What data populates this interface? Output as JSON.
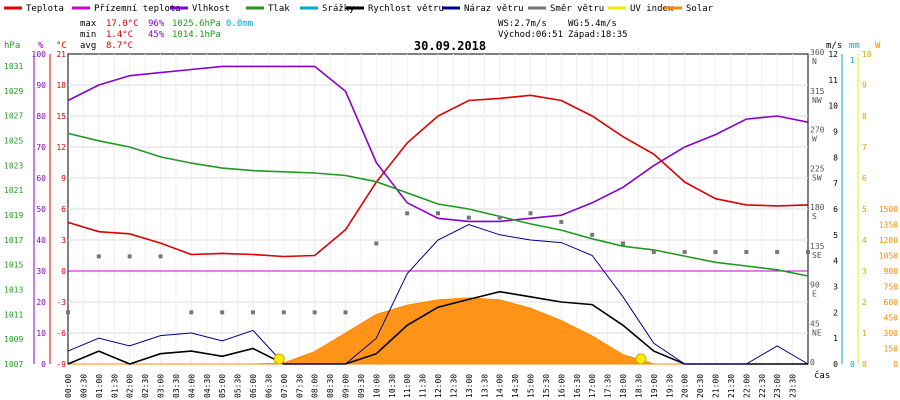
{
  "chart_data": {
    "type": "line",
    "title": "30.09.2018",
    "legend": [
      {
        "name": "Teplota",
        "color": "#dd0000"
      },
      {
        "name": "Přízemní teplota",
        "color": "#cc00cc"
      },
      {
        "name": "Vlhkost",
        "color": "#8800cc"
      },
      {
        "name": "Tlak",
        "color": "#229922"
      },
      {
        "name": "Srážky",
        "color": "#00aacc"
      },
      {
        "name": "Rychlost větru",
        "color": "#000000"
      },
      {
        "name": "Náraz větru",
        "color": "#000088"
      },
      {
        "name": "Směr větru",
        "color": "#777777"
      },
      {
        "name": "UV index",
        "color": "#eeee00"
      },
      {
        "name": "Solar",
        "color": "#ff8800"
      }
    ],
    "stats": {
      "max_label": "max",
      "max_temp": "17.0°C",
      "max_hum": "96%",
      "max_press": "1025.6hPa",
      "max_rain": "0.0mm",
      "min_label": "min",
      "min_temp": "1.4°C",
      "min_hum": "45%",
      "min_press": "1014.1hPa",
      "avg_label": "avg",
      "avg_temp": "8.7°C"
    },
    "info": {
      "ws": "WS:2.7m/s",
      "wg": "WG:5.4m/s",
      "sunrise": "Východ:06:51",
      "sunset": "Západ:18:35"
    },
    "axis_units": {
      "press": "hPa",
      "hum": "%",
      "temp": "°C",
      "wind": "m/s",
      "rain": "mm",
      "solar": "W",
      "x": "čas"
    },
    "axes": {
      "hpa_ticks": [
        "1031",
        "1029",
        "1027",
        "1025",
        "1023",
        "1021",
        "1019",
        "1017",
        "1015",
        "1013",
        "1011",
        "1009",
        "1007"
      ],
      "hum_ticks": [
        "100",
        "90",
        "80",
        "70",
        "60",
        "50",
        "40",
        "30",
        "20",
        "10",
        "0"
      ],
      "temp_ticks": [
        "21",
        "18",
        "15",
        "12",
        "9",
        "6",
        "3",
        "0",
        "-3",
        "-6",
        "-9"
      ],
      "temp_range": [
        -9,
        21
      ],
      "dir_ticks": [
        {
          "deg": "360",
          "dir": "N"
        },
        {
          "deg": "315",
          "dir": "NW"
        },
        {
          "deg": "270",
          "dir": "W"
        },
        {
          "deg": "225",
          "dir": "SW"
        },
        {
          "deg": "180",
          "dir": "S"
        },
        {
          "deg": "135",
          "dir": "SE"
        },
        {
          "deg": "90",
          "dir": "E"
        },
        {
          "deg": "45",
          "dir": "NE"
        },
        {
          "deg": "0",
          "dir": ""
        }
      ],
      "wind_ticks": [
        "12",
        "11",
        "10",
        "9",
        "8",
        "7",
        "6",
        "5",
        "4",
        "3",
        "2",
        "1",
        "0"
      ],
      "wind_range": [
        0,
        12
      ],
      "rain_ticks": [
        "1",
        "0"
      ],
      "solar_ticks": [
        "1500",
        "1350",
        "1200",
        "1050",
        "900",
        "750",
        "600",
        "450",
        "300",
        "150",
        "0"
      ],
      "solar_range": [
        0,
        1500
      ],
      "uv_ticks": [
        "10",
        "9",
        "8",
        "7",
        "6",
        "5",
        "4",
        "3",
        "2",
        "1",
        "0"
      ],
      "x_ticks": [
        "00:00",
        "00:30",
        "01:00",
        "01:30",
        "02:00",
        "02:30",
        "03:00",
        "03:30",
        "04:00",
        "04:30",
        "05:00",
        "05:30",
        "06:00",
        "06:30",
        "07:00",
        "07:30",
        "08:00",
        "08:30",
        "09:00",
        "09:30",
        "10:00",
        "10:30",
        "11:00",
        "11:30",
        "12:00",
        "12:30",
        "13:00",
        "13:30",
        "14:00",
        "14:30",
        "15:00",
        "15:30",
        "16:00",
        "16:30",
        "17:00",
        "17:30",
        "18:00",
        "18:30",
        "19:00",
        "19:30",
        "20:00",
        "20:30",
        "21:00",
        "21:30",
        "22:00",
        "22:30",
        "23:00",
        "23:30"
      ]
    },
    "x_hours": [
      0,
      1,
      2,
      3,
      4,
      5,
      6,
      7,
      8,
      9,
      10,
      11,
      12,
      13,
      14,
      15,
      16,
      17,
      18,
      19,
      20,
      21,
      22,
      23,
      24
    ],
    "series": [
      {
        "name": "Teplota",
        "axis": "temp",
        "values": [
          4.7,
          3.8,
          3.6,
          2.7,
          1.6,
          1.7,
          1.6,
          1.4,
          1.5,
          4.0,
          8.6,
          12.4,
          15.0,
          16.5,
          16.7,
          17.0,
          16.5,
          15.0,
          13.0,
          11.3,
          8.6,
          7.0,
          6.4,
          6.3,
          6.4
        ]
      },
      {
        "name": "Vlhkost",
        "axis": "hum",
        "values": [
          85,
          90,
          93,
          94,
          95,
          96,
          96,
          96,
          96,
          88,
          65,
          52,
          47,
          46,
          46,
          47,
          48,
          52,
          57,
          64,
          70,
          74,
          79,
          80,
          78
        ]
      },
      {
        "name": "Tlak",
        "axis": "press",
        "values": [
          1025.6,
          1025.0,
          1024.5,
          1023.7,
          1023.2,
          1022.8,
          1022.6,
          1022.5,
          1022.4,
          1022.2,
          1021.7,
          1020.8,
          1019.9,
          1019.5,
          1018.9,
          1018.3,
          1017.8,
          1017.1,
          1016.5,
          1016.2,
          1015.7,
          1015.2,
          1014.9,
          1014.6,
          1014.1
        ]
      },
      {
        "name": "Solar",
        "axis": "solar",
        "values": [
          0,
          0,
          0,
          0,
          0,
          0,
          0,
          10,
          120,
          300,
          480,
          570,
          620,
          640,
          620,
          540,
          420,
          270,
          90,
          0,
          0,
          0,
          0,
          0,
          0
        ]
      },
      {
        "name": "Rychlost větru",
        "axis": "wind",
        "values": [
          0,
          0.5,
          0,
          0.4,
          0.5,
          0.3,
          0.6,
          0,
          0,
          0,
          0.4,
          1.5,
          2.2,
          2.5,
          2.8,
          2.6,
          2.4,
          2.3,
          1.5,
          0.5,
          0,
          0,
          0,
          0,
          0
        ]
      },
      {
        "name": "Náraz větru",
        "axis": "wind",
        "values": [
          0.5,
          1.0,
          0.7,
          1.1,
          1.2,
          0.9,
          1.3,
          0,
          0,
          0,
          1.0,
          3.5,
          4.8,
          5.4,
          5.0,
          4.8,
          4.7,
          4.2,
          2.6,
          0.8,
          0,
          0,
          0,
          0.7,
          0
        ]
      },
      {
        "name": "Směr větru",
        "axis": "dir",
        "values": [
          60,
          125,
          125,
          125,
          60,
          60,
          60,
          60,
          60,
          60,
          140,
          175,
          175,
          170,
          170,
          175,
          165,
          150,
          140,
          130,
          130,
          130,
          130,
          130,
          130
        ]
      }
    ]
  }
}
